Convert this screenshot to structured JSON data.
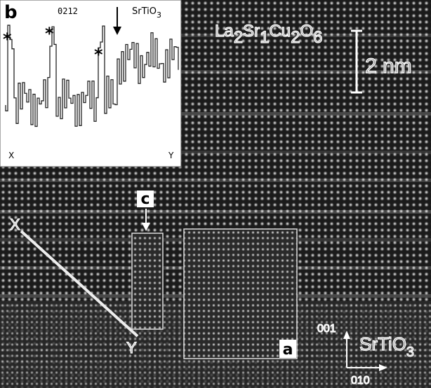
{
  "inset": {
    "label": "b",
    "annotation": "0212",
    "substrate": {
      "text": "SrTiO",
      "subscript": "3"
    },
    "peak_marker": "*",
    "start": "X",
    "end": "Y"
  },
  "main": {
    "formula": [
      {
        "element": "La",
        "count": "2"
      },
      {
        "element": "Sr",
        "count": "1"
      },
      {
        "element": "Cu",
        "count": "2"
      },
      {
        "element": "O",
        "count": "6"
      }
    ],
    "scale_bar": "2 nm",
    "panel_c": "c",
    "panel_a": "a",
    "line_start": "X",
    "line_end": "Y",
    "axes": {
      "vertical": "001",
      "horizontal": "010"
    },
    "substrate": {
      "text": "SrTiO",
      "subscript": "3"
    }
  }
}
